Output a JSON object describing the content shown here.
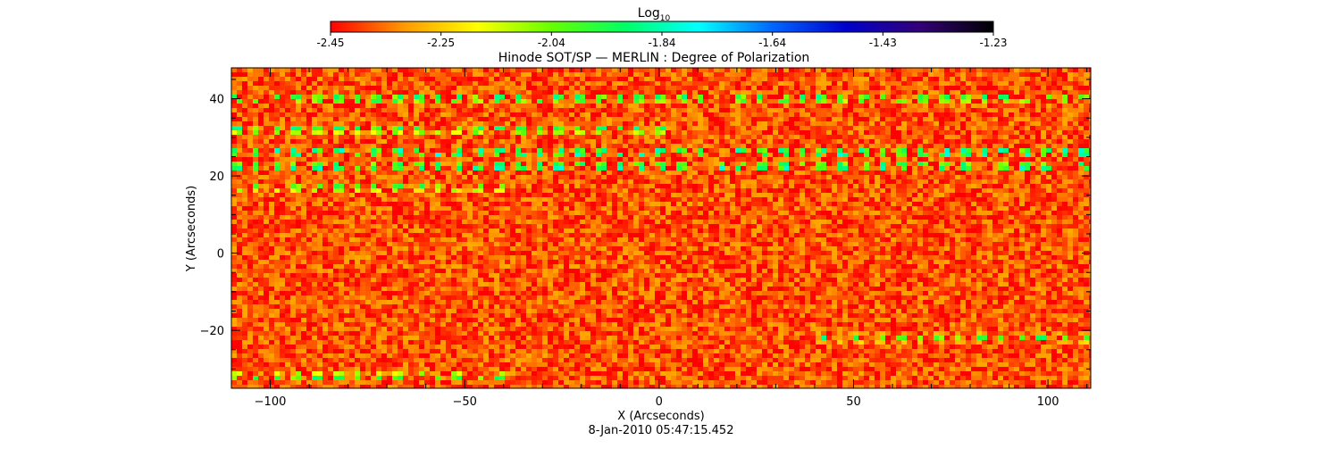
{
  "chart_data": {
    "type": "heatmap",
    "title": "Hinode SOT/SP — MERLIN : Degree of Polarization",
    "xlabel": "X (Arcseconds)",
    "ylabel": "Y (Arcseconds)",
    "timestamp": "8-Jan-2010 05:47:15.452",
    "xlim": [
      -110,
      111
    ],
    "ylim": [
      -35,
      48
    ],
    "xticks": [
      -100,
      -50,
      0,
      50,
      100
    ],
    "yticks": [
      -20,
      0,
      20,
      40
    ],
    "colorbar": {
      "label": "Log",
      "label_subscript": "10",
      "min": -2.45,
      "max": -1.23,
      "ticks": [
        "-2.45",
        "-2.25",
        "-2.04",
        "-1.84",
        "-1.64",
        "-1.43",
        "-1.23"
      ],
      "colors": [
        "#ff0000",
        "#ff9900",
        "#ffff00",
        "#66ff00",
        "#00ff66",
        "#00ffff",
        "#0066ff",
        "#0000cc",
        "#330077",
        "#000000"
      ]
    },
    "background_level": -2.38,
    "feature_bands": [
      {
        "y": 40,
        "x_range": [
          -110,
          111
        ],
        "level": -1.7
      },
      {
        "y": 32,
        "x_range": [
          -110,
          5
        ],
        "level": -1.75
      },
      {
        "y": 26,
        "x_range": [
          -110,
          111
        ],
        "level": -1.55
      },
      {
        "y": 22.5,
        "x_range": [
          -110,
          111
        ],
        "level": -1.6
      },
      {
        "y": 17,
        "x_range": [
          -110,
          -40
        ],
        "level": -1.85
      },
      {
        "y": -22,
        "x_range": [
          40,
          111
        ],
        "level": -1.9
      },
      {
        "y": -32,
        "x_range": [
          -110,
          -40
        ],
        "level": -1.8
      }
    ],
    "grid": false,
    "legend": "none"
  }
}
